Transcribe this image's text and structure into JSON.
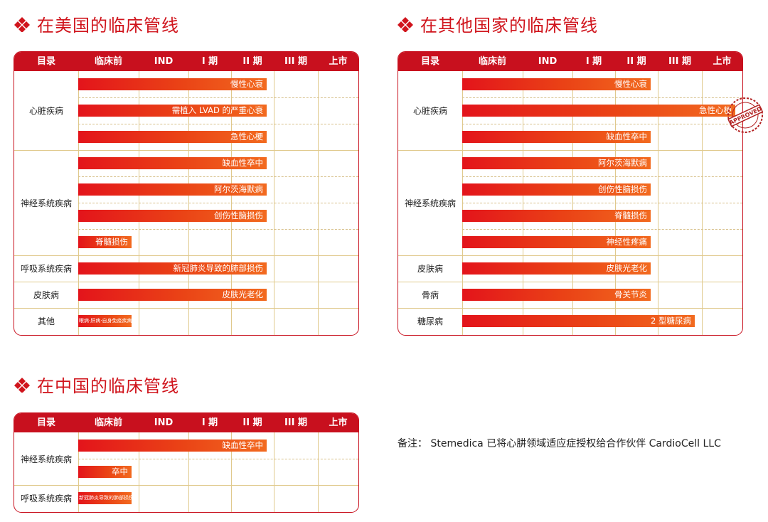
{
  "sections": {
    "us": {
      "title": "在美国的临床管线"
    },
    "other": {
      "title": "在其他国家的临床管线"
    },
    "cn": {
      "title": "在中国的临床管线"
    }
  },
  "columns": [
    "目录",
    "临床前",
    "IND",
    "I 期",
    "II 期",
    "III 期",
    "上市"
  ],
  "stamp": {
    "text": "APPROVED"
  },
  "note": "备注：  Stemedica 已将心肼领域适应症授权给合作伙伴 CardioCell LLC",
  "colors": {
    "accent": "#c8101e",
    "bar_start": "#e3141b",
    "bar_end": "#f26a1f",
    "grid": "#e0c98c"
  },
  "chart_data": [
    {
      "type": "table",
      "title": "在美国的临床管线",
      "stages": [
        "临床前",
        "IND",
        "I 期",
        "II 期",
        "III 期",
        "上市"
      ],
      "groups": [
        {
          "category": "心脏疾病",
          "items": [
            {
              "label": "慢性心衰",
              "stage": "II 期"
            },
            {
              "label": "需植入 LVAD 的严重心衰",
              "stage": "II 期"
            },
            {
              "label": "急性心梗",
              "stage": "II 期"
            }
          ]
        },
        {
          "category": "神经系统疾病",
          "items": [
            {
              "label": "缺血性卒中",
              "stage": "II 期"
            },
            {
              "label": "阿尔茨海默病",
              "stage": "II 期"
            },
            {
              "label": "创伤性脑损伤",
              "stage": "II 期"
            },
            {
              "label": "脊髓损伤",
              "stage": "临床前"
            }
          ]
        },
        {
          "category": "呼吸系统疾病",
          "items": [
            {
              "label": "新冠肺炎导致的肺部损伤",
              "stage": "II 期"
            }
          ]
        },
        {
          "category": "皮肤病",
          "items": [
            {
              "label": "皮肤光老化",
              "stage": "II 期"
            }
          ]
        },
        {
          "category": "其他",
          "items": [
            {
              "label": "眼病·肝病·自身免疫疾病等",
              "stage": "临床前"
            }
          ]
        }
      ]
    },
    {
      "type": "table",
      "title": "在其他国家的临床管线",
      "stages": [
        "临床前",
        "IND",
        "I 期",
        "II 期",
        "III 期",
        "上市"
      ],
      "groups": [
        {
          "category": "心脏疾病",
          "items": [
            {
              "label": "慢性心衰",
              "stage": "II 期"
            },
            {
              "label": "急性心梗",
              "stage": "上市"
            },
            {
              "label": "缺血性卒中",
              "stage": "II 期"
            }
          ]
        },
        {
          "category": "神经系统疾病",
          "items": [
            {
              "label": "阿尔茨海默病",
              "stage": "II 期"
            },
            {
              "label": "创伤性脑损伤",
              "stage": "II 期"
            },
            {
              "label": "脊髓损伤",
              "stage": "II 期"
            },
            {
              "label": "神经性疼痛",
              "stage": "II 期"
            }
          ]
        },
        {
          "category": "皮肤病",
          "items": [
            {
              "label": "皮肤光老化",
              "stage": "II 期"
            }
          ]
        },
        {
          "category": "骨病",
          "items": [
            {
              "label": "骨关节炎",
              "stage": "II 期"
            }
          ]
        },
        {
          "category": "糖尿病",
          "items": [
            {
              "label": "2 型糖尿病",
              "stage": "III 期"
            }
          ]
        }
      ]
    },
    {
      "type": "table",
      "title": "在中国的临床管线",
      "stages": [
        "临床前",
        "IND",
        "I 期",
        "II 期",
        "III 期",
        "上市"
      ],
      "groups": [
        {
          "category": "神经系统疾病",
          "items": [
            {
              "label": "缺血性卒中",
              "stage": "II 期"
            },
            {
              "label": "卒中",
              "stage": "临床前"
            }
          ]
        },
        {
          "category": "呼吸系统疾病",
          "items": [
            {
              "label": "新冠肺炎导致的肺部损伤",
              "stage": "临床前"
            }
          ]
        }
      ]
    }
  ]
}
